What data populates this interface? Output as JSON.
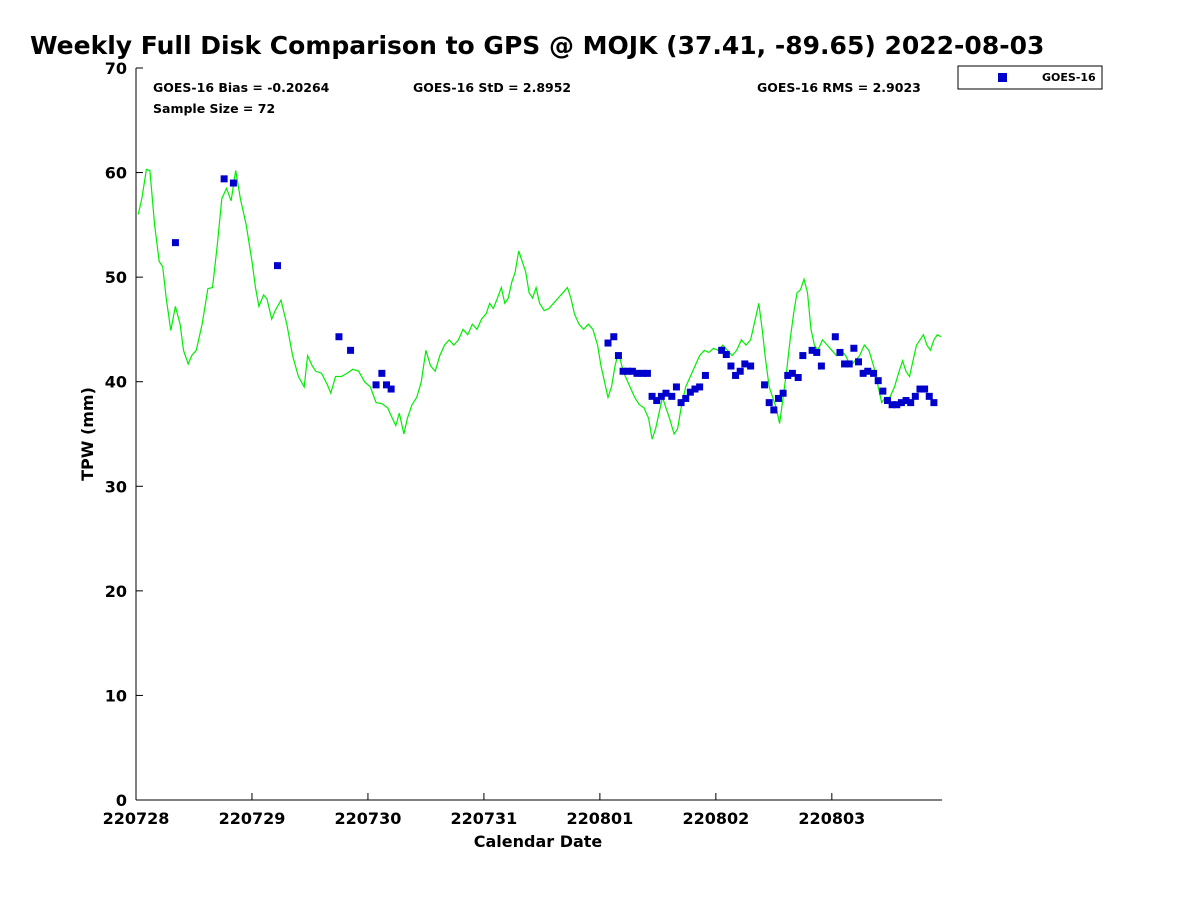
{
  "chart_data": {
    "type": "scatter",
    "title": "Weekly Full Disk Comparison to GPS @ MOJK (37.41, -89.65) 2022-08-03",
    "xlabel": "Calendar Date",
    "ylabel": "TPW (mm)",
    "xlim": [
      0,
      6.95
    ],
    "ylim": [
      0,
      70
    ],
    "x_tick_labels": [
      "220728",
      "220729",
      "220730",
      "220731",
      "220801",
      "220802",
      "220803"
    ],
    "y_tick_labels": [
      "0",
      "10",
      "20",
      "30",
      "40",
      "50",
      "60",
      "70"
    ],
    "grid": false,
    "legend": {
      "position": "outside-top-right",
      "entries": [
        "GOES-16"
      ]
    },
    "stats": {
      "bias": "GOES-16 Bias = -0.20264",
      "std": "GOES-16 StD = 2.8952",
      "rms": "GOES-16 RMS = 2.9023",
      "sample": "Sample Size = 72"
    },
    "series": [
      {
        "name": "GOES-16",
        "kind": "scatter",
        "color": "#0000cc",
        "marker": "square",
        "points": [
          [
            0.34,
            53.3
          ],
          [
            0.76,
            59.4
          ],
          [
            0.84,
            59.0
          ],
          [
            1.22,
            51.1
          ],
          [
            1.75,
            44.3
          ],
          [
            1.85,
            43.0
          ],
          [
            2.07,
            39.7
          ],
          [
            2.12,
            40.8
          ],
          [
            2.16,
            39.7
          ],
          [
            2.2,
            39.3
          ],
          [
            4.07,
            43.7
          ],
          [
            4.12,
            44.3
          ],
          [
            4.16,
            42.5
          ],
          [
            4.2,
            41.0
          ],
          [
            4.24,
            41.0
          ],
          [
            4.28,
            41.0
          ],
          [
            4.32,
            40.8
          ],
          [
            4.37,
            40.8
          ],
          [
            4.41,
            40.8
          ],
          [
            4.45,
            38.6
          ],
          [
            4.49,
            38.2
          ],
          [
            4.53,
            38.6
          ],
          [
            4.57,
            38.9
          ],
          [
            4.62,
            38.6
          ],
          [
            4.66,
            39.5
          ],
          [
            4.7,
            38.0
          ],
          [
            4.74,
            38.4
          ],
          [
            4.78,
            39.0
          ],
          [
            4.82,
            39.3
          ],
          [
            4.86,
            39.5
          ],
          [
            4.91,
            40.6
          ],
          [
            5.05,
            43.0
          ],
          [
            5.09,
            42.6
          ],
          [
            5.13,
            41.5
          ],
          [
            5.17,
            40.6
          ],
          [
            5.21,
            41.0
          ],
          [
            5.25,
            41.7
          ],
          [
            5.3,
            41.5
          ],
          [
            5.42,
            39.7
          ],
          [
            5.46,
            38.0
          ],
          [
            5.5,
            37.3
          ],
          [
            5.54,
            38.4
          ],
          [
            5.58,
            38.9
          ],
          [
            5.62,
            40.6
          ],
          [
            5.66,
            40.8
          ],
          [
            5.71,
            40.4
          ],
          [
            5.75,
            42.5
          ],
          [
            5.83,
            43.0
          ],
          [
            5.87,
            42.8
          ],
          [
            5.91,
            41.5
          ],
          [
            6.03,
            44.3
          ],
          [
            6.07,
            42.8
          ],
          [
            6.11,
            41.7
          ],
          [
            6.15,
            41.7
          ],
          [
            6.19,
            43.2
          ],
          [
            6.23,
            41.9
          ],
          [
            6.27,
            40.8
          ],
          [
            6.31,
            41.0
          ],
          [
            6.36,
            40.8
          ],
          [
            6.4,
            40.1
          ],
          [
            6.44,
            39.1
          ],
          [
            6.48,
            38.2
          ],
          [
            6.52,
            37.8
          ],
          [
            6.56,
            37.8
          ],
          [
            6.6,
            38.0
          ],
          [
            6.64,
            38.2
          ],
          [
            6.68,
            38.0
          ],
          [
            6.72,
            38.6
          ],
          [
            6.76,
            39.3
          ],
          [
            6.8,
            39.3
          ],
          [
            6.84,
            38.6
          ],
          [
            6.88,
            38.0
          ]
        ]
      },
      {
        "kind": "line",
        "color": "#00ee00",
        "points": [
          [
            0.02,
            56.0
          ],
          [
            0.05,
            57.5
          ],
          [
            0.09,
            60.3
          ],
          [
            0.12,
            60.2
          ],
          [
            0.16,
            55.0
          ],
          [
            0.2,
            51.5
          ],
          [
            0.23,
            51.0
          ],
          [
            0.26,
            48.0
          ],
          [
            0.3,
            44.9
          ],
          [
            0.34,
            47.2
          ],
          [
            0.38,
            45.5
          ],
          [
            0.41,
            43.0
          ],
          [
            0.45,
            41.7
          ],
          [
            0.48,
            42.5
          ],
          [
            0.52,
            43.0
          ],
          [
            0.57,
            45.5
          ],
          [
            0.62,
            48.9
          ],
          [
            0.66,
            49.0
          ],
          [
            0.7,
            53.0
          ],
          [
            0.74,
            57.5
          ],
          [
            0.78,
            58.5
          ],
          [
            0.82,
            57.3
          ],
          [
            0.86,
            60.2
          ],
          [
            0.9,
            57.5
          ],
          [
            0.95,
            55.0
          ],
          [
            1.0,
            51.5
          ],
          [
            1.03,
            49.0
          ],
          [
            1.06,
            47.2
          ],
          [
            1.1,
            48.3
          ],
          [
            1.13,
            47.9
          ],
          [
            1.17,
            46.0
          ],
          [
            1.2,
            46.8
          ],
          [
            1.25,
            47.8
          ],
          [
            1.3,
            45.5
          ],
          [
            1.35,
            42.5
          ],
          [
            1.4,
            40.5
          ],
          [
            1.45,
            39.5
          ],
          [
            1.48,
            42.5
          ],
          [
            1.52,
            41.5
          ],
          [
            1.55,
            41.0
          ],
          [
            1.6,
            40.8
          ],
          [
            1.65,
            39.7
          ],
          [
            1.68,
            38.9
          ],
          [
            1.72,
            40.5
          ],
          [
            1.77,
            40.5
          ],
          [
            1.82,
            40.8
          ],
          [
            1.87,
            41.2
          ],
          [
            1.92,
            41.0
          ],
          [
            1.97,
            40.0
          ],
          [
            2.02,
            39.5
          ],
          [
            2.07,
            38.0
          ],
          [
            2.12,
            37.9
          ],
          [
            2.17,
            37.5
          ],
          [
            2.21,
            36.5
          ],
          [
            2.24,
            35.8
          ],
          [
            2.27,
            37.0
          ],
          [
            2.31,
            35.0
          ],
          [
            2.34,
            36.5
          ],
          [
            2.38,
            37.8
          ],
          [
            2.42,
            38.5
          ],
          [
            2.46,
            40.0
          ],
          [
            2.5,
            43.0
          ],
          [
            2.54,
            41.5
          ],
          [
            2.58,
            41.0
          ],
          [
            2.62,
            42.5
          ],
          [
            2.66,
            43.5
          ],
          [
            2.7,
            44.0
          ],
          [
            2.74,
            43.5
          ],
          [
            2.78,
            44.0
          ],
          [
            2.82,
            45.0
          ],
          [
            2.86,
            44.5
          ],
          [
            2.9,
            45.5
          ],
          [
            2.94,
            45.0
          ],
          [
            2.98,
            46.0
          ],
          [
            3.02,
            46.5
          ],
          [
            3.05,
            47.5
          ],
          [
            3.08,
            47.0
          ],
          [
            3.11,
            47.8
          ],
          [
            3.15,
            49.0
          ],
          [
            3.18,
            47.5
          ],
          [
            3.21,
            48.0
          ],
          [
            3.24,
            49.5
          ],
          [
            3.27,
            50.5
          ],
          [
            3.3,
            52.5
          ],
          [
            3.33,
            51.5
          ],
          [
            3.36,
            50.5
          ],
          [
            3.39,
            48.5
          ],
          [
            3.42,
            48.0
          ],
          [
            3.45,
            49.0
          ],
          [
            3.48,
            47.5
          ],
          [
            3.52,
            46.8
          ],
          [
            3.56,
            47.0
          ],
          [
            3.6,
            47.5
          ],
          [
            3.64,
            48.0
          ],
          [
            3.68,
            48.5
          ],
          [
            3.72,
            49.0
          ],
          [
            3.75,
            48.0
          ],
          [
            3.78,
            46.5
          ],
          [
            3.82,
            45.5
          ],
          [
            3.86,
            45.0
          ],
          [
            3.9,
            45.5
          ],
          [
            3.94,
            45.0
          ],
          [
            3.98,
            43.5
          ],
          [
            4.01,
            41.5
          ],
          [
            4.04,
            40.0
          ],
          [
            4.07,
            38.5
          ],
          [
            4.1,
            39.5
          ],
          [
            4.13,
            41.5
          ],
          [
            4.16,
            42.8
          ],
          [
            4.19,
            41.5
          ],
          [
            4.22,
            40.5
          ],
          [
            4.26,
            39.5
          ],
          [
            4.3,
            38.5
          ],
          [
            4.34,
            37.8
          ],
          [
            4.38,
            37.5
          ],
          [
            4.42,
            36.5
          ],
          [
            4.45,
            34.5
          ],
          [
            4.48,
            35.5
          ],
          [
            4.51,
            37.0
          ],
          [
            4.54,
            38.5
          ],
          [
            4.57,
            37.5
          ],
          [
            4.6,
            36.5
          ],
          [
            4.64,
            35.0
          ],
          [
            4.67,
            35.5
          ],
          [
            4.7,
            37.5
          ],
          [
            4.74,
            39.5
          ],
          [
            4.78,
            40.5
          ],
          [
            4.82,
            41.5
          ],
          [
            4.86,
            42.5
          ],
          [
            4.9,
            43.0
          ],
          [
            4.94,
            42.8
          ],
          [
            4.98,
            43.2
          ],
          [
            5.02,
            43.0
          ],
          [
            5.06,
            43.5
          ],
          [
            5.1,
            43.0
          ],
          [
            5.14,
            42.5
          ],
          [
            5.18,
            43.0
          ],
          [
            5.22,
            44.0
          ],
          [
            5.26,
            43.5
          ],
          [
            5.3,
            44.0
          ],
          [
            5.34,
            46.0
          ],
          [
            5.37,
            47.5
          ],
          [
            5.4,
            45.0
          ],
          [
            5.43,
            42.0
          ],
          [
            5.46,
            39.5
          ],
          [
            5.49,
            38.5
          ],
          [
            5.52,
            37.5
          ],
          [
            5.55,
            36.0
          ],
          [
            5.58,
            38.5
          ],
          [
            5.61,
            41.0
          ],
          [
            5.64,
            44.0
          ],
          [
            5.67,
            46.5
          ],
          [
            5.7,
            48.5
          ],
          [
            5.73,
            48.8
          ],
          [
            5.76,
            49.8
          ],
          [
            5.79,
            48.5
          ],
          [
            5.82,
            45.0
          ],
          [
            5.85,
            43.5
          ],
          [
            5.88,
            43.0
          ],
          [
            5.92,
            44.0
          ],
          [
            5.96,
            43.5
          ],
          [
            6.0,
            43.0
          ],
          [
            6.04,
            42.5
          ],
          [
            6.08,
            43.0
          ],
          [
            6.12,
            42.5
          ],
          [
            6.16,
            41.5
          ],
          [
            6.2,
            42.0
          ],
          [
            6.24,
            42.5
          ],
          [
            6.28,
            43.5
          ],
          [
            6.32,
            43.0
          ],
          [
            6.36,
            41.5
          ],
          [
            6.4,
            39.5
          ],
          [
            6.43,
            38.0
          ],
          [
            6.46,
            38.5
          ],
          [
            6.5,
            38.5
          ],
          [
            6.54,
            39.5
          ],
          [
            6.58,
            41.0
          ],
          [
            6.61,
            42.0
          ],
          [
            6.64,
            41.0
          ],
          [
            6.67,
            40.5
          ],
          [
            6.7,
            42.0
          ],
          [
            6.73,
            43.5
          ],
          [
            6.76,
            44.0
          ],
          [
            6.79,
            44.5
          ],
          [
            6.82,
            43.5
          ],
          [
            6.85,
            43.0
          ],
          [
            6.88,
            44.0
          ],
          [
            6.91,
            44.5
          ],
          [
            6.94,
            44.3
          ]
        ]
      }
    ]
  }
}
